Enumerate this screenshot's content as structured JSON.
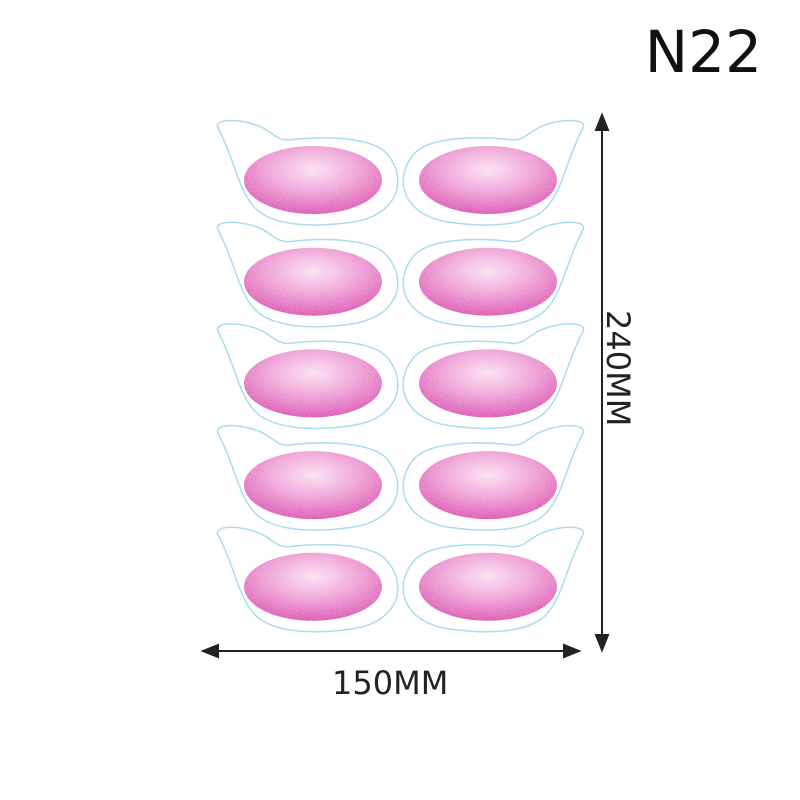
{
  "title": "N22",
  "dimensions": {
    "width_label": "150MM",
    "height_label": "240MM"
  },
  "sheet": {
    "rows": 5,
    "columns": 2,
    "outline_color": "#a9dcef",
    "glitter_color": "#e77bc3",
    "glitter_highlight": "#fbe0f2"
  }
}
